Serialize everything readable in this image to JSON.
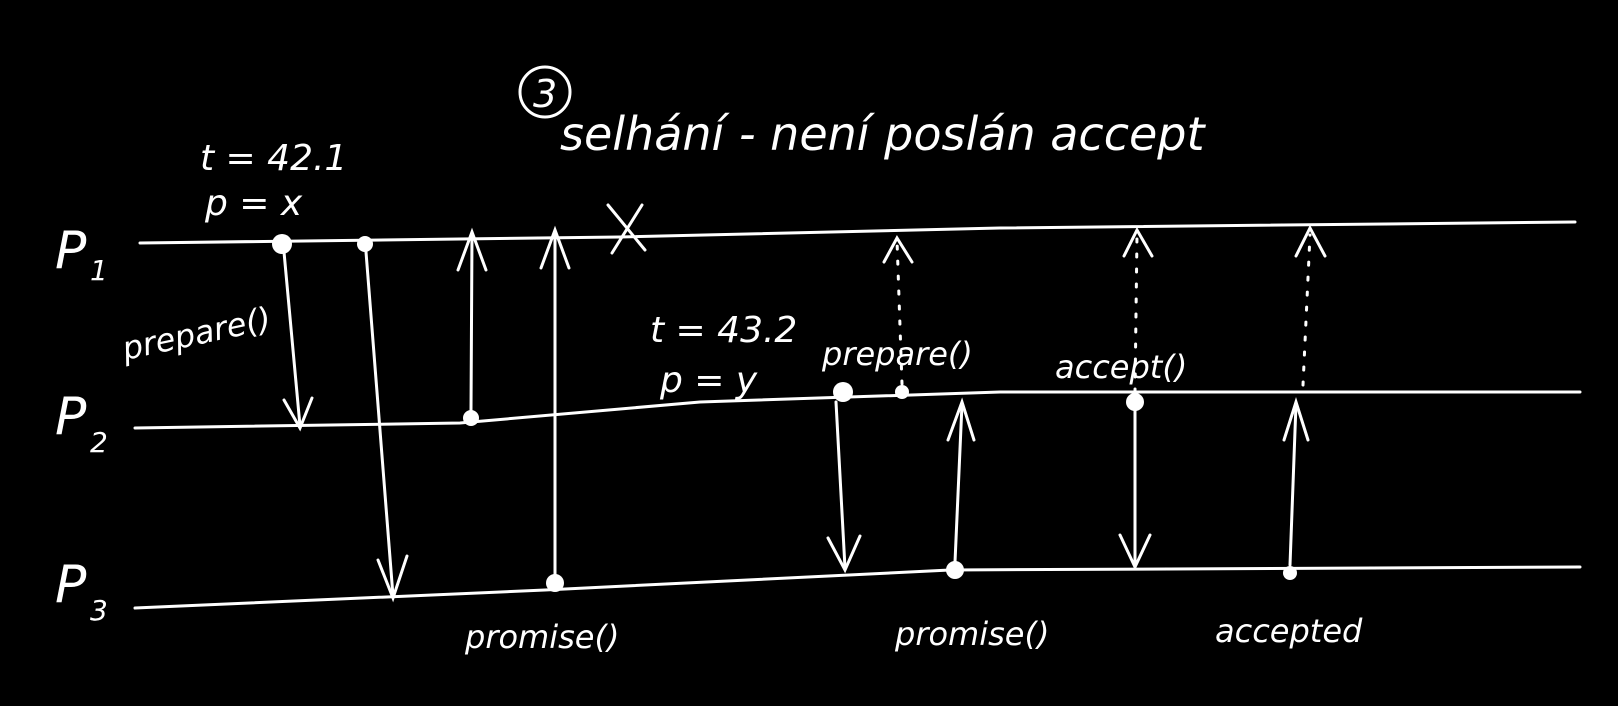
{
  "title": {
    "step_number": "3",
    "text_line1": "selhání - není poslán accept"
  },
  "annotations": {
    "p1_time": "t = 42.1",
    "p1_value": "p = x",
    "p2_time": "t = 43.2",
    "p2_value": "p = y"
  },
  "processes": [
    {
      "name": "P",
      "sub": "1"
    },
    {
      "name": "P",
      "sub": "2"
    },
    {
      "name": "P",
      "sub": "3"
    }
  ],
  "messages": {
    "prepare_1": "prepare()",
    "promise_1": "promise()",
    "prepare_2": "prepare()",
    "accept": "accept()",
    "promise_2": "promise()",
    "accepted": "accepted"
  },
  "colors": {
    "background": "#000000",
    "ink": "#ffffff"
  }
}
